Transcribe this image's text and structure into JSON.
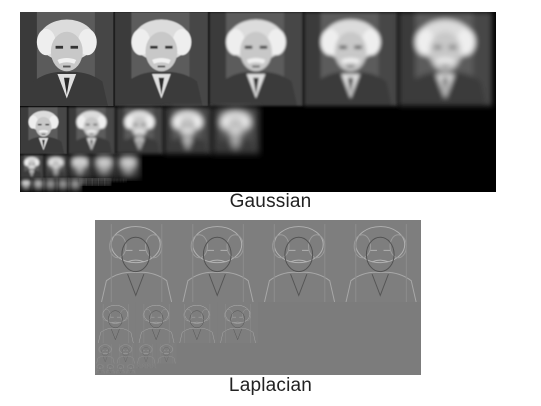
{
  "figure": {
    "panels": [
      {
        "id": "gaussian",
        "caption": "Gaussian",
        "background": "#000000",
        "tile_style": "gaussian",
        "levels": [
          {
            "level": 0,
            "tiles": 5
          },
          {
            "level": 1,
            "tiles": 5
          },
          {
            "level": 2,
            "tiles": 5
          },
          {
            "level": 3,
            "tiles": 5
          },
          {
            "level": 4,
            "tiles": 5
          },
          {
            "level": 5,
            "tiles": 5
          }
        ]
      },
      {
        "id": "laplacian",
        "caption": "Laplacian",
        "background": "#7c7c7c",
        "tile_style": "laplacian",
        "levels": [
          {
            "level": 0,
            "tiles": 4
          },
          {
            "level": 1,
            "tiles": 4
          },
          {
            "level": 2,
            "tiles": 4
          },
          {
            "level": 3,
            "tiles": 4
          },
          {
            "level": 4,
            "tiles": 4
          }
        ]
      }
    ],
    "colors": {
      "gaussian_tile_bg": "#5d5d5d",
      "gaussian_tile_dark": "#2a2a2a",
      "gaussian_face": "#d8d8d8",
      "gaussian_hair": "#ececec",
      "gaussian_suit": "#3c3c3c",
      "laplacian_tile_bg": "#808080",
      "laplacian_edge_light": "#b0b0b0",
      "laplacian_edge_dark": "#4c4c4c"
    }
  }
}
